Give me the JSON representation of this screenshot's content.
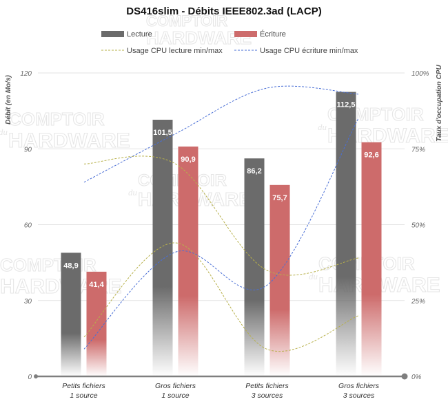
{
  "chart_data": {
    "type": "bar",
    "title": "DS416slim - Débits IEEE802.3ad (LACP)",
    "categories": [
      [
        "Petits fichiers",
        "1 source"
      ],
      [
        "Gros fichiers",
        "1 source"
      ],
      [
        "Petits fichiers",
        "3 sources"
      ],
      [
        "Gros fichiers",
        "3 sources"
      ]
    ],
    "ylabel": "Débit (en Mo/s)",
    "y2label": "Taux d'occupation  CPU",
    "ylim": [
      0,
      120
    ],
    "yticks": [
      0,
      30,
      60,
      90,
      120
    ],
    "y2lim": [
      0,
      100
    ],
    "y2ticks": [
      "0%",
      "25%",
      "50%",
      "75%",
      "100%"
    ],
    "series": [
      {
        "name": "Lecture",
        "kind": "bar",
        "color": "#6b6b6b",
        "values": [
          48.9,
          101.5,
          86.2,
          112.5
        ],
        "labels": [
          "48,9",
          "101,5",
          "86,2",
          "112,5"
        ]
      },
      {
        "name": "Écriture",
        "kind": "bar",
        "color": "#cd6b6b",
        "values": [
          41.4,
          90.9,
          75.7,
          92.6
        ],
        "labels": [
          "41,4",
          "90,9",
          "75,7",
          "92,6"
        ]
      }
    ],
    "cpu_lines": [
      {
        "name": "Usage CPU lecture min/max",
        "color": "#b7b04a",
        "min": [
          13,
          44,
          9,
          20
        ],
        "max": [
          70,
          70,
          35,
          39
        ]
      },
      {
        "name": "Usage CPU écriture min/max",
        "color": "#4a6fd6",
        "min": [
          9,
          41,
          30,
          85
        ],
        "max": [
          64,
          80,
          95,
          93
        ]
      }
    ],
    "legend": [
      "Lecture",
      "Écriture",
      "Usage CPU lecture min/max",
      "Usage CPU écriture min/max"
    ],
    "watermark": [
      "COMPTOIR",
      "du",
      "HARDWARE"
    ]
  }
}
